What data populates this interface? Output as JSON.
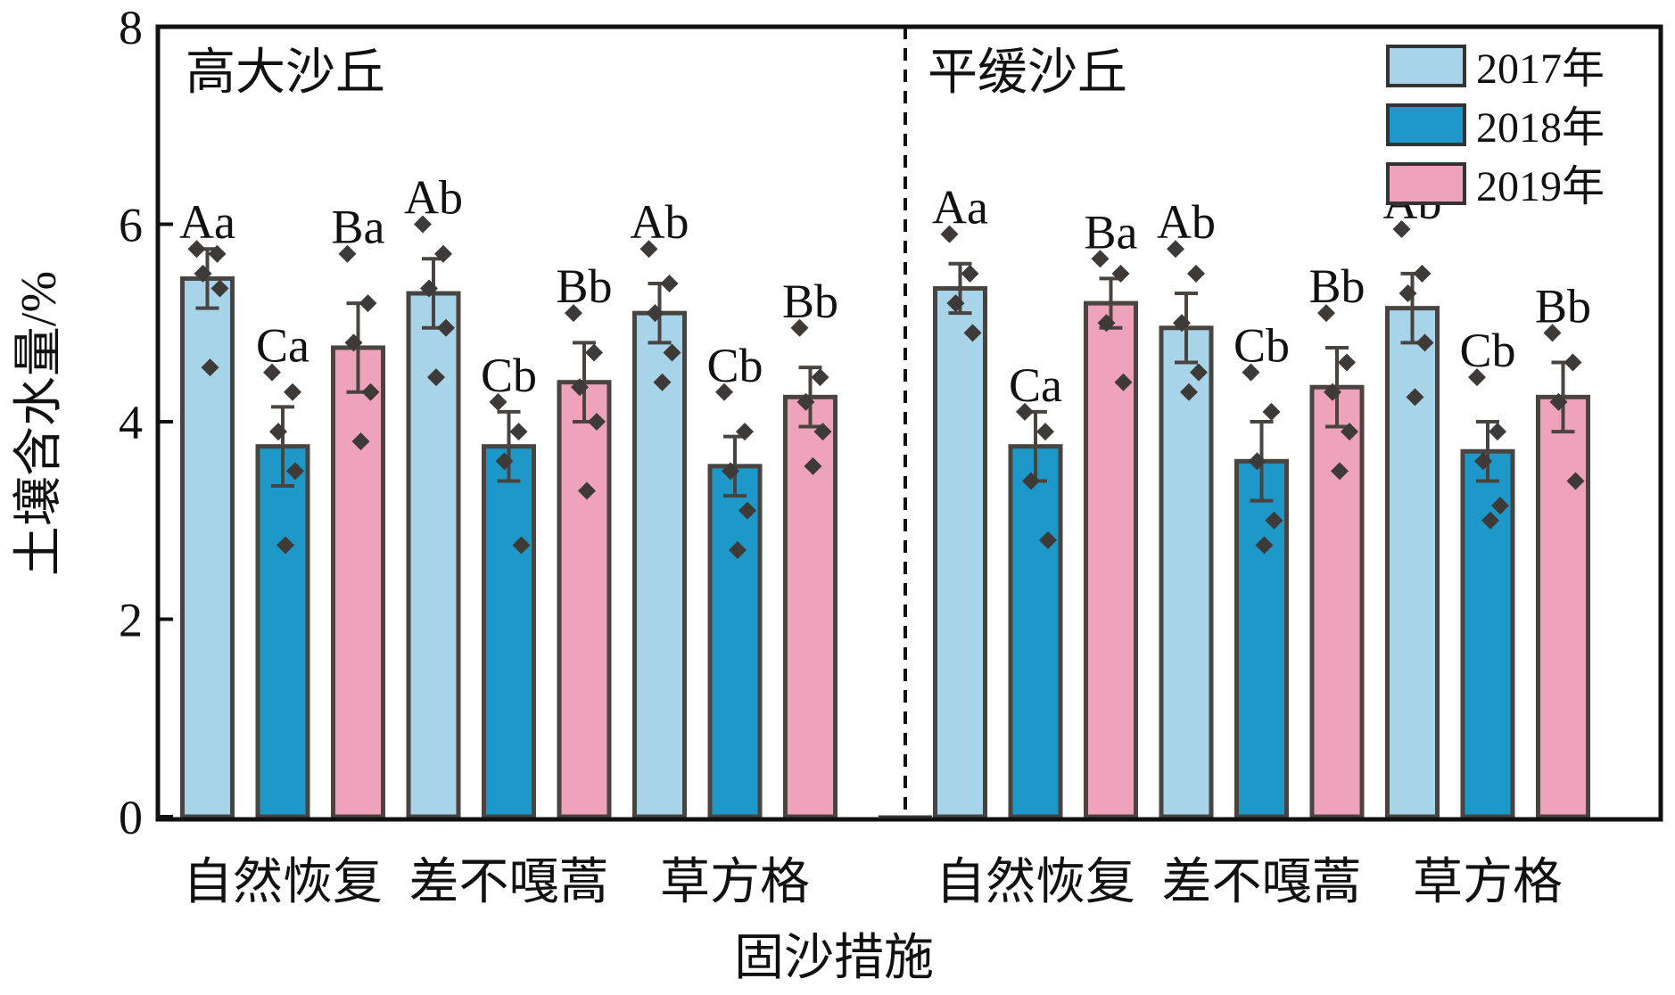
{
  "chart_data": {
    "type": "bar",
    "ylabel": "土壤含水量/%",
    "xlabel": "固沙措施",
    "ylim": [
      0,
      8
    ],
    "yticks": [
      "0",
      "2",
      "4",
      "6",
      "8"
    ],
    "legend_position": "top-right",
    "colors": {
      "2017年": "#a8d4ea",
      "2018年": "#1e98c8",
      "2019年": "#eea2bb",
      "edge": "#4a4440",
      "points": "#3e3a37"
    },
    "groups": [
      {
        "panel": "高大沙丘",
        "categories": [
          "自然恢复",
          "差不嘎蒿",
          "草方格"
        ],
        "series": [
          {
            "name": "2017年",
            "values": [
              5.45,
              5.3,
              5.1
            ],
            "errors": [
              0.3,
              0.35,
              0.3
            ],
            "labels": [
              "Aa",
              "Ab",
              "Ab"
            ]
          },
          {
            "name": "2018年",
            "values": [
              3.75,
              3.75,
              3.55
            ],
            "errors": [
              0.4,
              0.35,
              0.3
            ],
            "labels": [
              "Ca",
              "Cb",
              "Cb"
            ]
          },
          {
            "name": "2019年",
            "values": [
              4.75,
              4.4,
              4.25
            ],
            "errors": [
              0.45,
              0.4,
              0.3
            ],
            "labels": [
              "Ba",
              "Bb",
              "Bb"
            ]
          }
        ]
      },
      {
        "panel": "平缓沙丘",
        "categories": [
          "自然恢复",
          "差不嘎蒿",
          "草方格"
        ],
        "series": [
          {
            "name": "2017年",
            "values": [
              5.35,
              4.95,
              5.15
            ],
            "errors": [
              0.25,
              0.35,
              0.35
            ],
            "labels": [
              "Aa",
              "Ab",
              "Ab"
            ]
          },
          {
            "name": "2018年",
            "values": [
              3.75,
              3.6,
              3.7
            ],
            "errors": [
              0.35,
              0.4,
              0.3
            ],
            "labels": [
              "Ca",
              "Cb",
              "Cb"
            ]
          },
          {
            "name": "2019年",
            "values": [
              5.2,
              4.35,
              4.25
            ],
            "errors": [
              0.25,
              0.4,
              0.35
            ],
            "labels": [
              "Ba",
              "Bb",
              "Bb"
            ]
          }
        ]
      }
    ],
    "points": [
      [
        [
          5.75,
          5.7,
          5.5,
          5.35,
          4.55
        ],
        [
          4.5,
          4.3,
          3.9,
          3.5,
          2.75
        ],
        [
          5.7,
          5.2,
          4.8,
          4.3,
          3.8
        ]
      ],
      [
        [
          6.0,
          5.7,
          5.35,
          4.95,
          4.45
        ],
        [
          4.2,
          3.9,
          3.6,
          2.75
        ],
        [
          5.1,
          4.7,
          4.35,
          4.0,
          3.3
        ]
      ],
      [
        [
          5.75,
          5.4,
          5.1,
          4.7,
          4.4
        ],
        [
          4.3,
          3.9,
          3.5,
          3.1,
          2.7
        ],
        [
          4.95,
          4.45,
          4.2,
          3.9,
          3.55
        ]
      ],
      [
        [
          5.9,
          5.5,
          5.2,
          4.9
        ],
        [
          4.1,
          3.9,
          3.4,
          2.8
        ],
        [
          5.65,
          5.5,
          5.0,
          4.4
        ]
      ],
      [
        [
          5.75,
          5.5,
          5.0,
          4.5,
          4.3
        ],
        [
          4.5,
          4.1,
          3.6,
          3.0,
          2.75
        ],
        [
          5.1,
          4.6,
          4.3,
          3.9,
          3.5
        ]
      ],
      [
        [
          5.95,
          5.5,
          5.3,
          4.8,
          4.25
        ],
        [
          4.45,
          3.9,
          3.6,
          3.15,
          3.0
        ],
        [
          4.9,
          4.6,
          4.2,
          3.4
        ]
      ]
    ]
  }
}
